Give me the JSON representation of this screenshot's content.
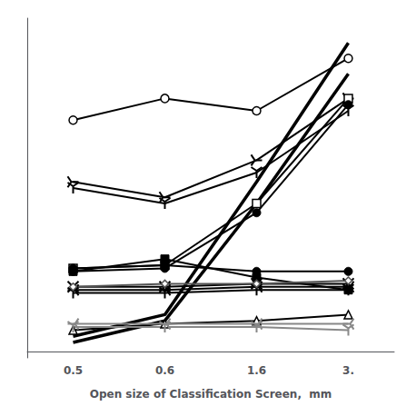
{
  "chart_data": {
    "type": "line",
    "xlabel": "Open size of Classification Screen,  mm",
    "categories": [
      "0.5",
      "0.6",
      "1.6",
      "3."
    ],
    "ylim": [
      -2,
      108
    ],
    "yticks": [],
    "tick_labels": "x",
    "grid": false,
    "series": [
      {
        "color": "#000000",
        "marker": "open_circle",
        "values": [
          75,
          82,
          78,
          95
        ]
      },
      {
        "color": "#000000",
        "marker": "none",
        "values": [
          5,
          12,
          55,
          100
        ]
      },
      {
        "color": "#000000",
        "marker": "none",
        "values": [
          3,
          10,
          48,
          90
        ]
      },
      {
        "color": "#000000",
        "marker": "tri_right",
        "values": [
          55,
          50,
          62,
          82
        ]
      },
      {
        "color": "#000000",
        "marker": "tri_down",
        "values": [
          53,
          48,
          58,
          78
        ]
      },
      {
        "color": "#000000",
        "marker": "open_square",
        "values": [
          27,
          28,
          48,
          82
        ]
      },
      {
        "color": "#000000",
        "marker": "circle",
        "values": [
          26,
          27,
          45,
          80
        ]
      },
      {
        "color": "#000000",
        "marker": "square",
        "values": [
          26,
          30,
          24,
          20
        ]
      },
      {
        "color": "#000000",
        "marker": "circle",
        "values": [
          27,
          28,
          26,
          26
        ]
      },
      {
        "color": "#000000",
        "marker": "tri_down",
        "values": [
          19,
          19,
          20,
          20
        ]
      },
      {
        "color": "#000000",
        "marker": "tri_left",
        "values": [
          20,
          20,
          21,
          21
        ]
      },
      {
        "color": "#000000",
        "marker": "x",
        "values": [
          21,
          21,
          22,
          22
        ]
      },
      {
        "color": "#555555",
        "marker": "open_diamond",
        "values": [
          21,
          22,
          22,
          23
        ]
      },
      {
        "color": "#000000",
        "marker": "open_triangle",
        "values": [
          7,
          9,
          10,
          12
        ]
      },
      {
        "color": "#888888",
        "marker": "tri_down",
        "values": [
          8,
          8,
          8,
          7
        ]
      },
      {
        "color": "#888888",
        "marker": "tri_left",
        "values": [
          9,
          9,
          9,
          9
        ]
      }
    ]
  }
}
